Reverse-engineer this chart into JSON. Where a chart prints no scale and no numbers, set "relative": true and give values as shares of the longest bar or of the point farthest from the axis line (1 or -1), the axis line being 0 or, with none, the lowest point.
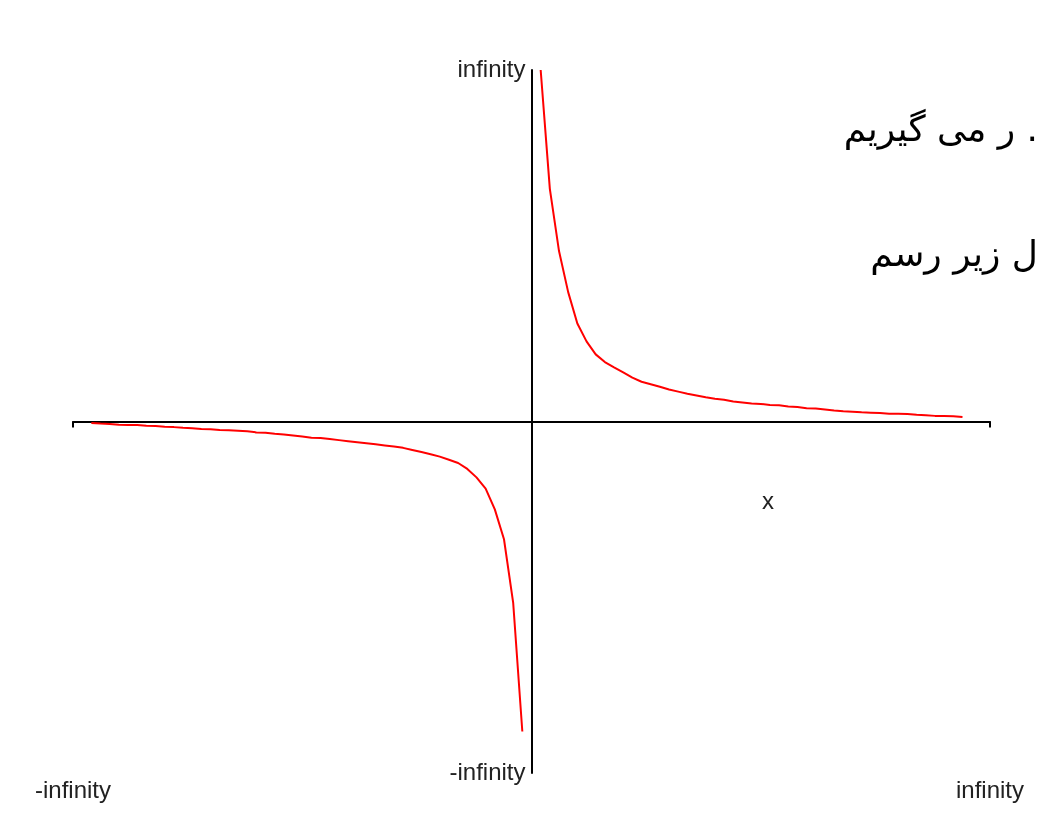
{
  "chart_data": {
    "type": "line",
    "xlabel": "x",
    "relative": true,
    "annotations": [
      "ر می گیریم .",
      "ل زیر رسم",
      "infinity",
      "-infinity"
    ],
    "categories": [
      "-infinity",
      null,
      null,
      null,
      null,
      null,
      null,
      null,
      null,
      null,
      null,
      null,
      null,
      null,
      null,
      null,
      null,
      null,
      null,
      null,
      null,
      null,
      null,
      null,
      null,
      null,
      null,
      null,
      null,
      null,
      null,
      null,
      null,
      null,
      null,
      null,
      null,
      null,
      null,
      null,
      null,
      null,
      null,
      null,
      null,
      null,
      null,
      null,
      null,
      null,
      null,
      null,
      null,
      null,
      null,
      null,
      null,
      null,
      null,
      null,
      null,
      null,
      null,
      null,
      null,
      null,
      null,
      null,
      null,
      null,
      null,
      null,
      null,
      null,
      null,
      null,
      null,
      null,
      null,
      null,
      null,
      null,
      null,
      null,
      null,
      null,
      null,
      null,
      null,
      null,
      null,
      null,
      null,
      null,
      null,
      null,
      null,
      null,
      null,
      null,
      "infinity"
    ],
    "values": [
      null,
      null,
      -0.004,
      -0.006,
      -0.007,
      -0.009,
      -0.01,
      -0.01,
      -0.012,
      -0.013,
      -0.015,
      -0.016,
      -0.018,
      -0.019,
      -0.021,
      -0.022,
      -0.024,
      -0.025,
      -0.026,
      -0.028,
      -0.031,
      -0.032,
      -0.035,
      -0.037,
      -0.04,
      -0.043,
      -0.046,
      -0.047,
      -0.05,
      -0.053,
      -0.056,
      -0.059,
      -0.062,
      -0.065,
      -0.068,
      -0.071,
      -0.075,
      -0.081,
      -0.087,
      -0.093,
      -0.1,
      -0.109,
      -0.118,
      -0.135,
      -0.159,
      -0.191,
      -0.25,
      -0.335,
      -0.515,
      -0.882,
      null,
      1,
      0.662,
      0.485,
      0.368,
      0.279,
      0.228,
      0.191,
      0.169,
      0.154,
      0.14,
      0.125,
      0.113,
      0.106,
      0.099,
      0.091,
      0.085,
      0.079,
      0.074,
      0.069,
      0.065,
      0.062,
      0.057,
      0.054,
      0.051,
      0.05,
      0.047,
      0.046,
      0.043,
      0.041,
      0.038,
      0.037,
      0.034,
      0.031,
      0.029,
      0.028,
      0.026,
      0.025,
      0.024,
      0.022,
      0.022,
      0.021,
      0.019,
      0.018,
      0.016,
      0.016,
      0.015,
      0.013,
      null,
      null,
      null
    ],
    "color": "#ff0000",
    "grid": false,
    "marker": "none",
    "line_style": "solid"
  }
}
